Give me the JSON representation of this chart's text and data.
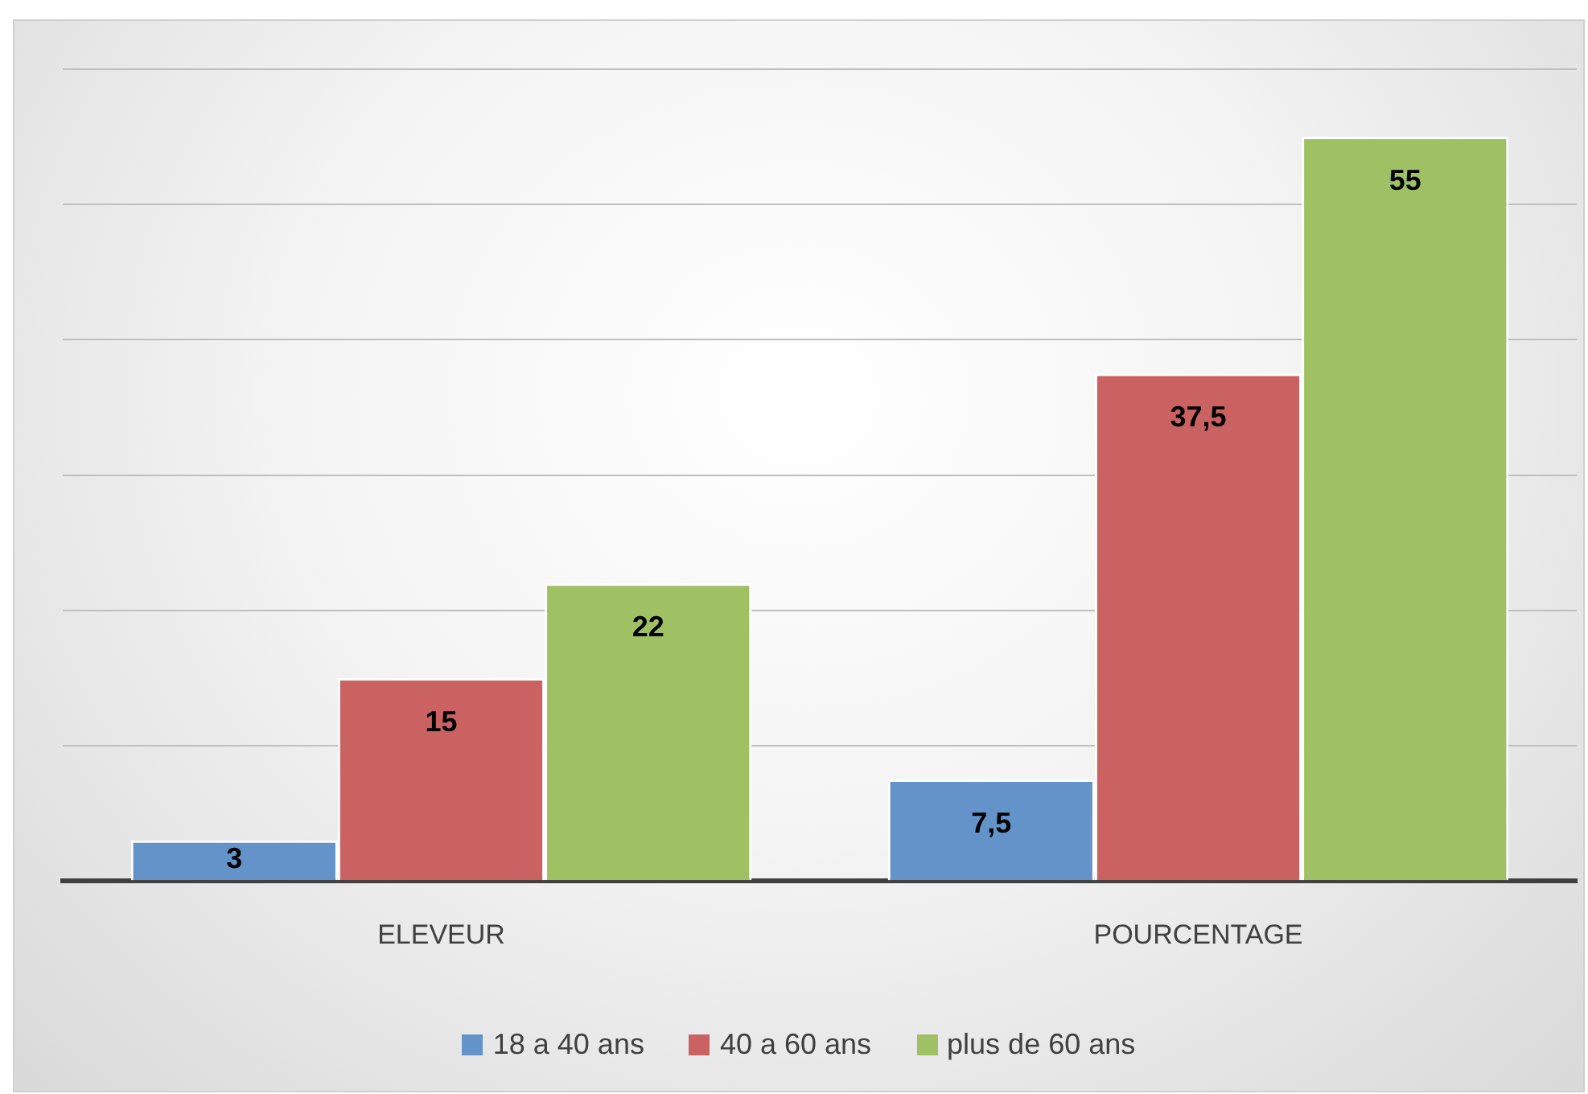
{
  "chart_data": {
    "type": "bar",
    "categories": [
      "ELEVEUR",
      "POURCENTAGE"
    ],
    "series": [
      {
        "name": "18 a 40 ans",
        "color": "#6393c9",
        "values": [
          3,
          7.5
        ],
        "value_labels": [
          "3",
          "7,5"
        ]
      },
      {
        "name": "40 a 60 ans",
        "color": "#cb6262",
        "values": [
          15,
          37.5
        ],
        "value_labels": [
          "15",
          "37,5"
        ]
      },
      {
        "name": "plus de 60 ans",
        "color": "#9fc163",
        "values": [
          22,
          55
        ],
        "value_labels": [
          "22",
          "55"
        ]
      }
    ],
    "grid": "y",
    "tick_labels": "x",
    "legend": "bottom"
  }
}
